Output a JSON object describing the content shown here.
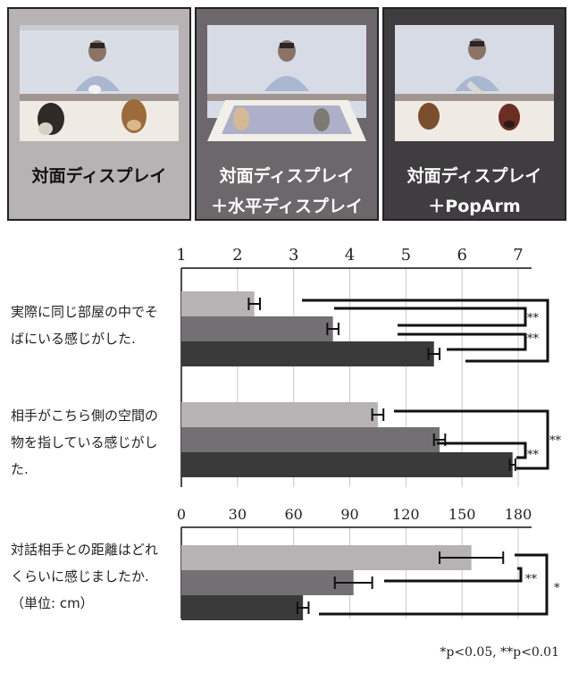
{
  "panels": [
    {
      "line1": "対面ディスプレイ",
      "line2": "",
      "bg": "#b7b2b4",
      "fg": "#111111"
    },
    {
      "line1": "対面ディスプレイ",
      "line2": "＋水平ディスプレイ",
      "bg": "#6c676a",
      "fg": "#ffffff"
    },
    {
      "line1": "対面ディスプレイ",
      "line2": "＋PopArm",
      "bg": "#3f3d3f",
      "fg": "#ffffff"
    }
  ],
  "questions": [
    "実際に同じ部屋の中でそばにいる感じがした.",
    "相手がこちら側の空間の物を指している感じがした.",
    "対話相手との距離はどれくらいに感じましたか.（単位: cm）"
  ],
  "footnote": "*p<0.05, **p<0.01",
  "colors": {
    "cond1": "#b7b2b4",
    "cond2": "#737073",
    "cond3": "#3b3a3b"
  },
  "chart_data": [
    {
      "type": "bar",
      "orientation": "horizontal",
      "categories": [
        "実際に同じ部屋の中でそばにいる感じがした.",
        "相手がこちら側の空間の物を指している感じがした."
      ],
      "series": [
        {
          "name": "対面ディスプレイ",
          "values": [
            2.3,
            4.5
          ],
          "errors": [
            0.1,
            0.1
          ]
        },
        {
          "name": "対面ディスプレイ＋水平ディスプレイ",
          "values": [
            3.7,
            5.6
          ],
          "errors": [
            0.1,
            0.1
          ]
        },
        {
          "name": "対面ディスプレイ＋PopArm",
          "values": [
            5.5,
            6.9
          ],
          "errors": [
            0.1,
            0.05
          ]
        }
      ],
      "xlim": [
        1,
        7
      ],
      "ticks": [
        "1",
        "2",
        "3",
        "4",
        "5",
        "6",
        "7"
      ],
      "grid": true,
      "significance": [
        "**",
        "**",
        "**",
        "**"
      ]
    },
    {
      "type": "bar",
      "orientation": "horizontal",
      "categories": [
        "対話相手との距離はどれくらいに感じましたか.（単位: cm）"
      ],
      "series": [
        {
          "name": "対面ディスプレイ",
          "values": [
            155
          ],
          "errors": [
            17
          ]
        },
        {
          "name": "対面ディスプレイ＋水平ディスプレイ",
          "values": [
            92
          ],
          "errors": [
            10
          ]
        },
        {
          "name": "対面ディスプレイ＋PopArm",
          "values": [
            65
          ],
          "errors": [
            3
          ]
        }
      ],
      "xlim": [
        0,
        180
      ],
      "ticks": [
        "0",
        "30",
        "60",
        "90",
        "120",
        "150",
        "180"
      ],
      "grid": true,
      "significance": [
        "**",
        "*"
      ]
    }
  ]
}
